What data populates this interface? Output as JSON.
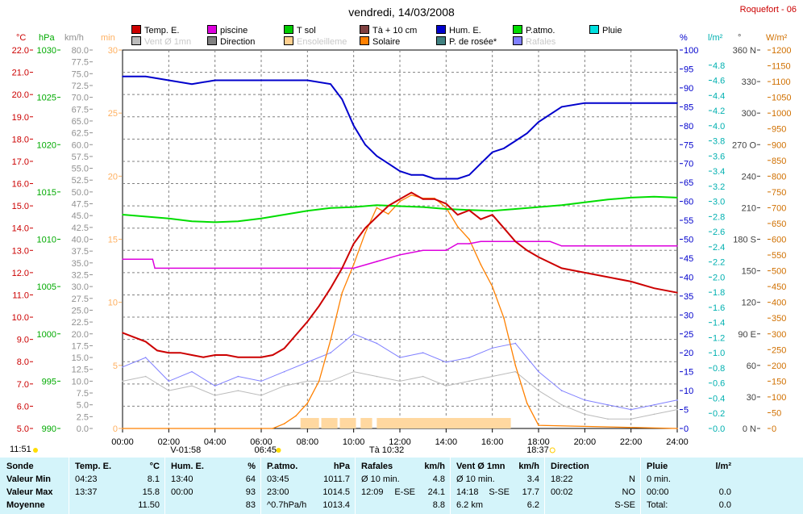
{
  "title": "vendredi, 14/03/2008",
  "station": "Roquefort - 06",
  "legend": [
    {
      "label": "Temp. E.",
      "color": "#cc0000",
      "dim": false
    },
    {
      "label": "piscine",
      "color": "#dd00dd",
      "dim": false
    },
    {
      "label": "T sol",
      "color": "#00cc00",
      "dim": false
    },
    {
      "label": "Tà + 10 cm",
      "color": "#804040",
      "dim": false
    },
    {
      "label": "Hum. E.",
      "color": "#0000cc",
      "dim": false
    },
    {
      "label": "P.atmo.",
      "color": "#00dd00",
      "dim": false
    },
    {
      "label": "Pluie",
      "color": "#00e0e0",
      "dim": false
    },
    {
      "label": "Vent Ø 1mn",
      "color": "#bbbbbb",
      "dim": true
    },
    {
      "label": "Direction",
      "color": "#808080",
      "dim": false
    },
    {
      "label": "Ensoleilleme",
      "color": "#ffd090",
      "dim": true
    },
    {
      "label": "Solaire",
      "color": "#ff8000",
      "dim": false
    },
    {
      "label": "P. de rosée*",
      "color": "#408080",
      "dim": false
    },
    {
      "label": "Rafales",
      "color": "#8080ff",
      "dim": true
    }
  ],
  "axes_labels": {
    "temp": "°C",
    "press": "hPa",
    "wind": "km/h",
    "sun": "min",
    "hum": "%",
    "rain": "l/m²",
    "dir": "°",
    "solar": "W/m²"
  },
  "axis_ticks": {
    "temp": [
      "5.0",
      "6.0",
      "7.0",
      "8.0",
      "9.0",
      "10.0",
      "11.0",
      "12.0",
      "13.0",
      "14.0",
      "15.0",
      "16.0",
      "17.0",
      "18.0",
      "19.0",
      "20.0",
      "21.0",
      "22.0"
    ],
    "press": [
      "990",
      "995",
      "1000",
      "1005",
      "1010",
      "1015",
      "1020",
      "1025",
      "1030"
    ],
    "wind": [
      "0.0",
      "2.5",
      "5.0",
      "7.5",
      "10.0",
      "12.5",
      "15.0",
      "17.5",
      "20.0",
      "22.5",
      "25.0",
      "27.5",
      "30.0",
      "32.5",
      "35.0",
      "37.5",
      "40.0",
      "42.5",
      "45.0",
      "47.5",
      "50.0",
      "52.5",
      "55.0",
      "57.5",
      "60.0",
      "62.5",
      "65.0",
      "67.5",
      "70.0",
      "72.5",
      "75.0",
      "77.5",
      "80.0"
    ],
    "sun": [
      "0",
      "5",
      "10",
      "15",
      "20",
      "25",
      "30"
    ],
    "hum": [
      "0",
      "5",
      "10",
      "15",
      "20",
      "25",
      "30",
      "35",
      "40",
      "45",
      "50",
      "55",
      "60",
      "65",
      "70",
      "75",
      "80",
      "85",
      "90",
      "95",
      "100"
    ],
    "rain": [
      "0.0",
      "0.2",
      "0.4",
      "0.6",
      "0.8",
      "1.0",
      "1.2",
      "1.4",
      "1.6",
      "1.8",
      "2.0",
      "2.2",
      "2.4",
      "2.6",
      "2.8",
      "3.0",
      "3.2",
      "3.4",
      "3.6",
      "3.8",
      "4.0",
      "4.2",
      "4.4",
      "4.6",
      "4.8"
    ],
    "dir": [
      "0 N",
      "30",
      "60",
      "90 E",
      "120",
      "150",
      "180 S",
      "210",
      "240",
      "270 O",
      "300",
      "330",
      "360 N"
    ],
    "solar": [
      "0",
      "50",
      "100",
      "150",
      "200",
      "250",
      "300",
      "350",
      "400",
      "450",
      "500",
      "550",
      "600",
      "650",
      "700",
      "750",
      "800",
      "850",
      "900",
      "950",
      "1000",
      "1050",
      "1100",
      "1150",
      "1200"
    ]
  },
  "x_ticks": [
    "00:00",
    "02:00",
    "04:00",
    "06:00",
    "08:00",
    "10:00",
    "12:00",
    "14:00",
    "16:00",
    "18:00",
    "20:00",
    "22:00",
    "24:00"
  ],
  "events": {
    "left_time": "11:51",
    "min_time": "-01:58",
    "sunrise": "06:45",
    "peak": "10:32",
    "sunset": "18:37"
  },
  "chart_data": {
    "type": "line",
    "x_unit": "hour",
    "xlim": [
      0,
      24
    ],
    "series": [
      {
        "name": "Temp. E.",
        "unit": "°C",
        "color": "#cc0000",
        "x": [
          0,
          0.5,
          1,
          1.5,
          2,
          2.5,
          3,
          3.5,
          4,
          4.5,
          5,
          5.5,
          6,
          6.5,
          7,
          7.5,
          8,
          8.5,
          9,
          9.5,
          10,
          10.5,
          11,
          11.5,
          12,
          12.5,
          13,
          13.5,
          14,
          14.5,
          15,
          15.5,
          16,
          16.5,
          17,
          17.5,
          18,
          19,
          20,
          21,
          22,
          23,
          24
        ],
        "values": [
          9.3,
          9.1,
          8.9,
          8.5,
          8.4,
          8.4,
          8.3,
          8.2,
          8.3,
          8.3,
          8.2,
          8.2,
          8.2,
          8.3,
          8.6,
          9.2,
          9.8,
          10.5,
          11.3,
          12.2,
          13.3,
          14.0,
          14.5,
          15.0,
          15.3,
          15.6,
          15.3,
          15.3,
          15.1,
          14.6,
          14.8,
          14.4,
          14.6,
          14.0,
          13.4,
          13.0,
          12.7,
          12.2,
          12.0,
          11.8,
          11.6,
          11.3,
          11.1
        ]
      },
      {
        "name": "Hum. E.",
        "unit": "%",
        "color": "#0000cc",
        "x": [
          0,
          1,
          2,
          3,
          4,
          5,
          6,
          7,
          8,
          9,
          9.5,
          10,
          10.5,
          11,
          11.5,
          12,
          12.5,
          13,
          13.5,
          14,
          14.5,
          15,
          15.5,
          16,
          16.5,
          17,
          17.5,
          18,
          19,
          20,
          21,
          22,
          23,
          24
        ],
        "values": [
          93,
          93,
          92,
          91,
          92,
          92,
          92,
          92,
          92,
          91,
          87,
          80,
          75,
          72,
          70,
          68,
          67,
          67,
          66,
          66,
          66,
          67,
          70,
          73,
          74,
          76,
          78,
          81,
          85,
          86,
          86,
          86,
          86,
          86
        ]
      },
      {
        "name": "P.atmo.",
        "unit": "hPa",
        "color": "#00dd00",
        "x": [
          0,
          1,
          2,
          3,
          4,
          5,
          6,
          7,
          8,
          9,
          10,
          11,
          12,
          13,
          14,
          15,
          16,
          17,
          18,
          19,
          20,
          21,
          22,
          23,
          24
        ],
        "values": [
          1012.6,
          1012.4,
          1012.2,
          1011.9,
          1011.8,
          1011.9,
          1012.2,
          1012.6,
          1013.0,
          1013.3,
          1013.4,
          1013.6,
          1013.5,
          1013.4,
          1013.2,
          1013.1,
          1013.0,
          1013.2,
          1013.4,
          1013.6,
          1013.9,
          1014.2,
          1014.4,
          1014.5,
          1014.4
        ]
      },
      {
        "name": "piscine",
        "unit": "°C",
        "color": "#dd00dd",
        "x": [
          0,
          1.3,
          1.4,
          2,
          4,
          6,
          8,
          9,
          10,
          11,
          12,
          13,
          14,
          14.5,
          15,
          15.5,
          16,
          16.5,
          17,
          18,
          18.5,
          19,
          20,
          21,
          22,
          23,
          24
        ],
        "values": [
          12.6,
          12.6,
          12.2,
          12.2,
          12.2,
          12.2,
          12.2,
          12.2,
          12.2,
          12.5,
          12.8,
          13.0,
          13.0,
          13.3,
          13.3,
          13.4,
          13.4,
          13.4,
          13.4,
          13.4,
          13.4,
          13.2,
          13.2,
          13.2,
          13.2,
          13.2,
          13.2
        ]
      },
      {
        "name": "Solaire",
        "unit": "W/m²",
        "color": "#ff8000",
        "x": [
          0,
          6.5,
          7,
          7.5,
          8,
          8.5,
          9,
          9.5,
          10,
          10.5,
          11,
          11.5,
          12,
          12.5,
          13,
          13.5,
          14,
          14.5,
          15,
          15.5,
          16,
          16.5,
          17,
          17.5,
          18,
          24
        ],
        "values": [
          0,
          0,
          15,
          40,
          80,
          150,
          280,
          430,
          520,
          620,
          700,
          680,
          720,
          740,
          730,
          730,
          700,
          640,
          600,
          520,
          450,
          350,
          200,
          80,
          10,
          0
        ]
      },
      {
        "name": "Rafales",
        "unit": "km/h",
        "color": "#8080ff",
        "x": [
          0,
          1,
          2,
          3,
          4,
          5,
          6,
          7,
          8,
          9,
          10,
          11,
          12,
          13,
          14,
          15,
          16,
          17,
          18,
          19,
          20,
          21,
          22,
          23,
          24
        ],
        "values": [
          13,
          15,
          10,
          12,
          9,
          11,
          10,
          12,
          14,
          16,
          20,
          18,
          15,
          16,
          14,
          15,
          17,
          18,
          12,
          8,
          6,
          5,
          4,
          5,
          6
        ]
      },
      {
        "name": "Vent Ø 1mn",
        "unit": "km/h",
        "color": "#bbbbbb",
        "x": [
          0,
          1,
          2,
          3,
          4,
          5,
          6,
          7,
          8,
          9,
          10,
          11,
          12,
          13,
          14,
          15,
          16,
          17,
          18,
          19,
          20,
          21,
          22,
          23,
          24
        ],
        "values": [
          10,
          11,
          8,
          9,
          7,
          8,
          7,
          9,
          10,
          10,
          12,
          11,
          10,
          11,
          9,
          10,
          11,
          12,
          8,
          5,
          3,
          2,
          2,
          3,
          4
        ]
      }
    ]
  },
  "table": {
    "row_labels": [
      "Sonde",
      "Valeur Min",
      "Valeur Max",
      "Moyenne"
    ],
    "groups": [
      {
        "head": "Temp. E.",
        "unit": "°C",
        "rows": [
          [
            "04:23",
            "",
            "8.1"
          ],
          [
            "13:37",
            "",
            "15.8"
          ],
          [
            "",
            "",
            "11.50"
          ]
        ]
      },
      {
        "head": "Hum. E.",
        "unit": "%",
        "rows": [
          [
            "13:40",
            "",
            "64"
          ],
          [
            "00:00",
            "",
            "93"
          ],
          [
            "",
            "",
            "83"
          ]
        ]
      },
      {
        "head": "P.atmo.",
        "unit": "hPa",
        "rows": [
          [
            "03:45",
            "",
            "1011.7"
          ],
          [
            "23:00",
            "",
            "1014.5"
          ],
          [
            "^0.7hPa/h",
            "",
            "1013.4"
          ]
        ]
      },
      {
        "head": "Rafales",
        "unit": "km/h",
        "rows": [
          [
            "Ø 10 min.",
            "",
            "4.8"
          ],
          [
            "12:09",
            "E-SE",
            "24.1"
          ],
          [
            "",
            "",
            "8.8"
          ]
        ]
      },
      {
        "head": "Vent Ø 1mn",
        "unit": "km/h",
        "rows": [
          [
            "Ø 10 min.",
            "",
            "3.4"
          ],
          [
            "14:18",
            "S-SE",
            "17.7"
          ],
          [
            "6.2 km",
            "",
            "6.2"
          ]
        ]
      },
      {
        "head": "Direction",
        "unit": "",
        "rows": [
          [
            "18:22",
            "",
            "N"
          ],
          [
            "00:02",
            "",
            "NO"
          ],
          [
            "",
            "",
            "S-SE"
          ]
        ]
      },
      {
        "head": "Pluie",
        "unit": "l/m²",
        "rows": [
          [
            "0 min.",
            "",
            ""
          ],
          [
            "00:00",
            "",
            "0.0"
          ],
          [
            "Total:",
            "",
            "0.0"
          ]
        ]
      }
    ]
  }
}
